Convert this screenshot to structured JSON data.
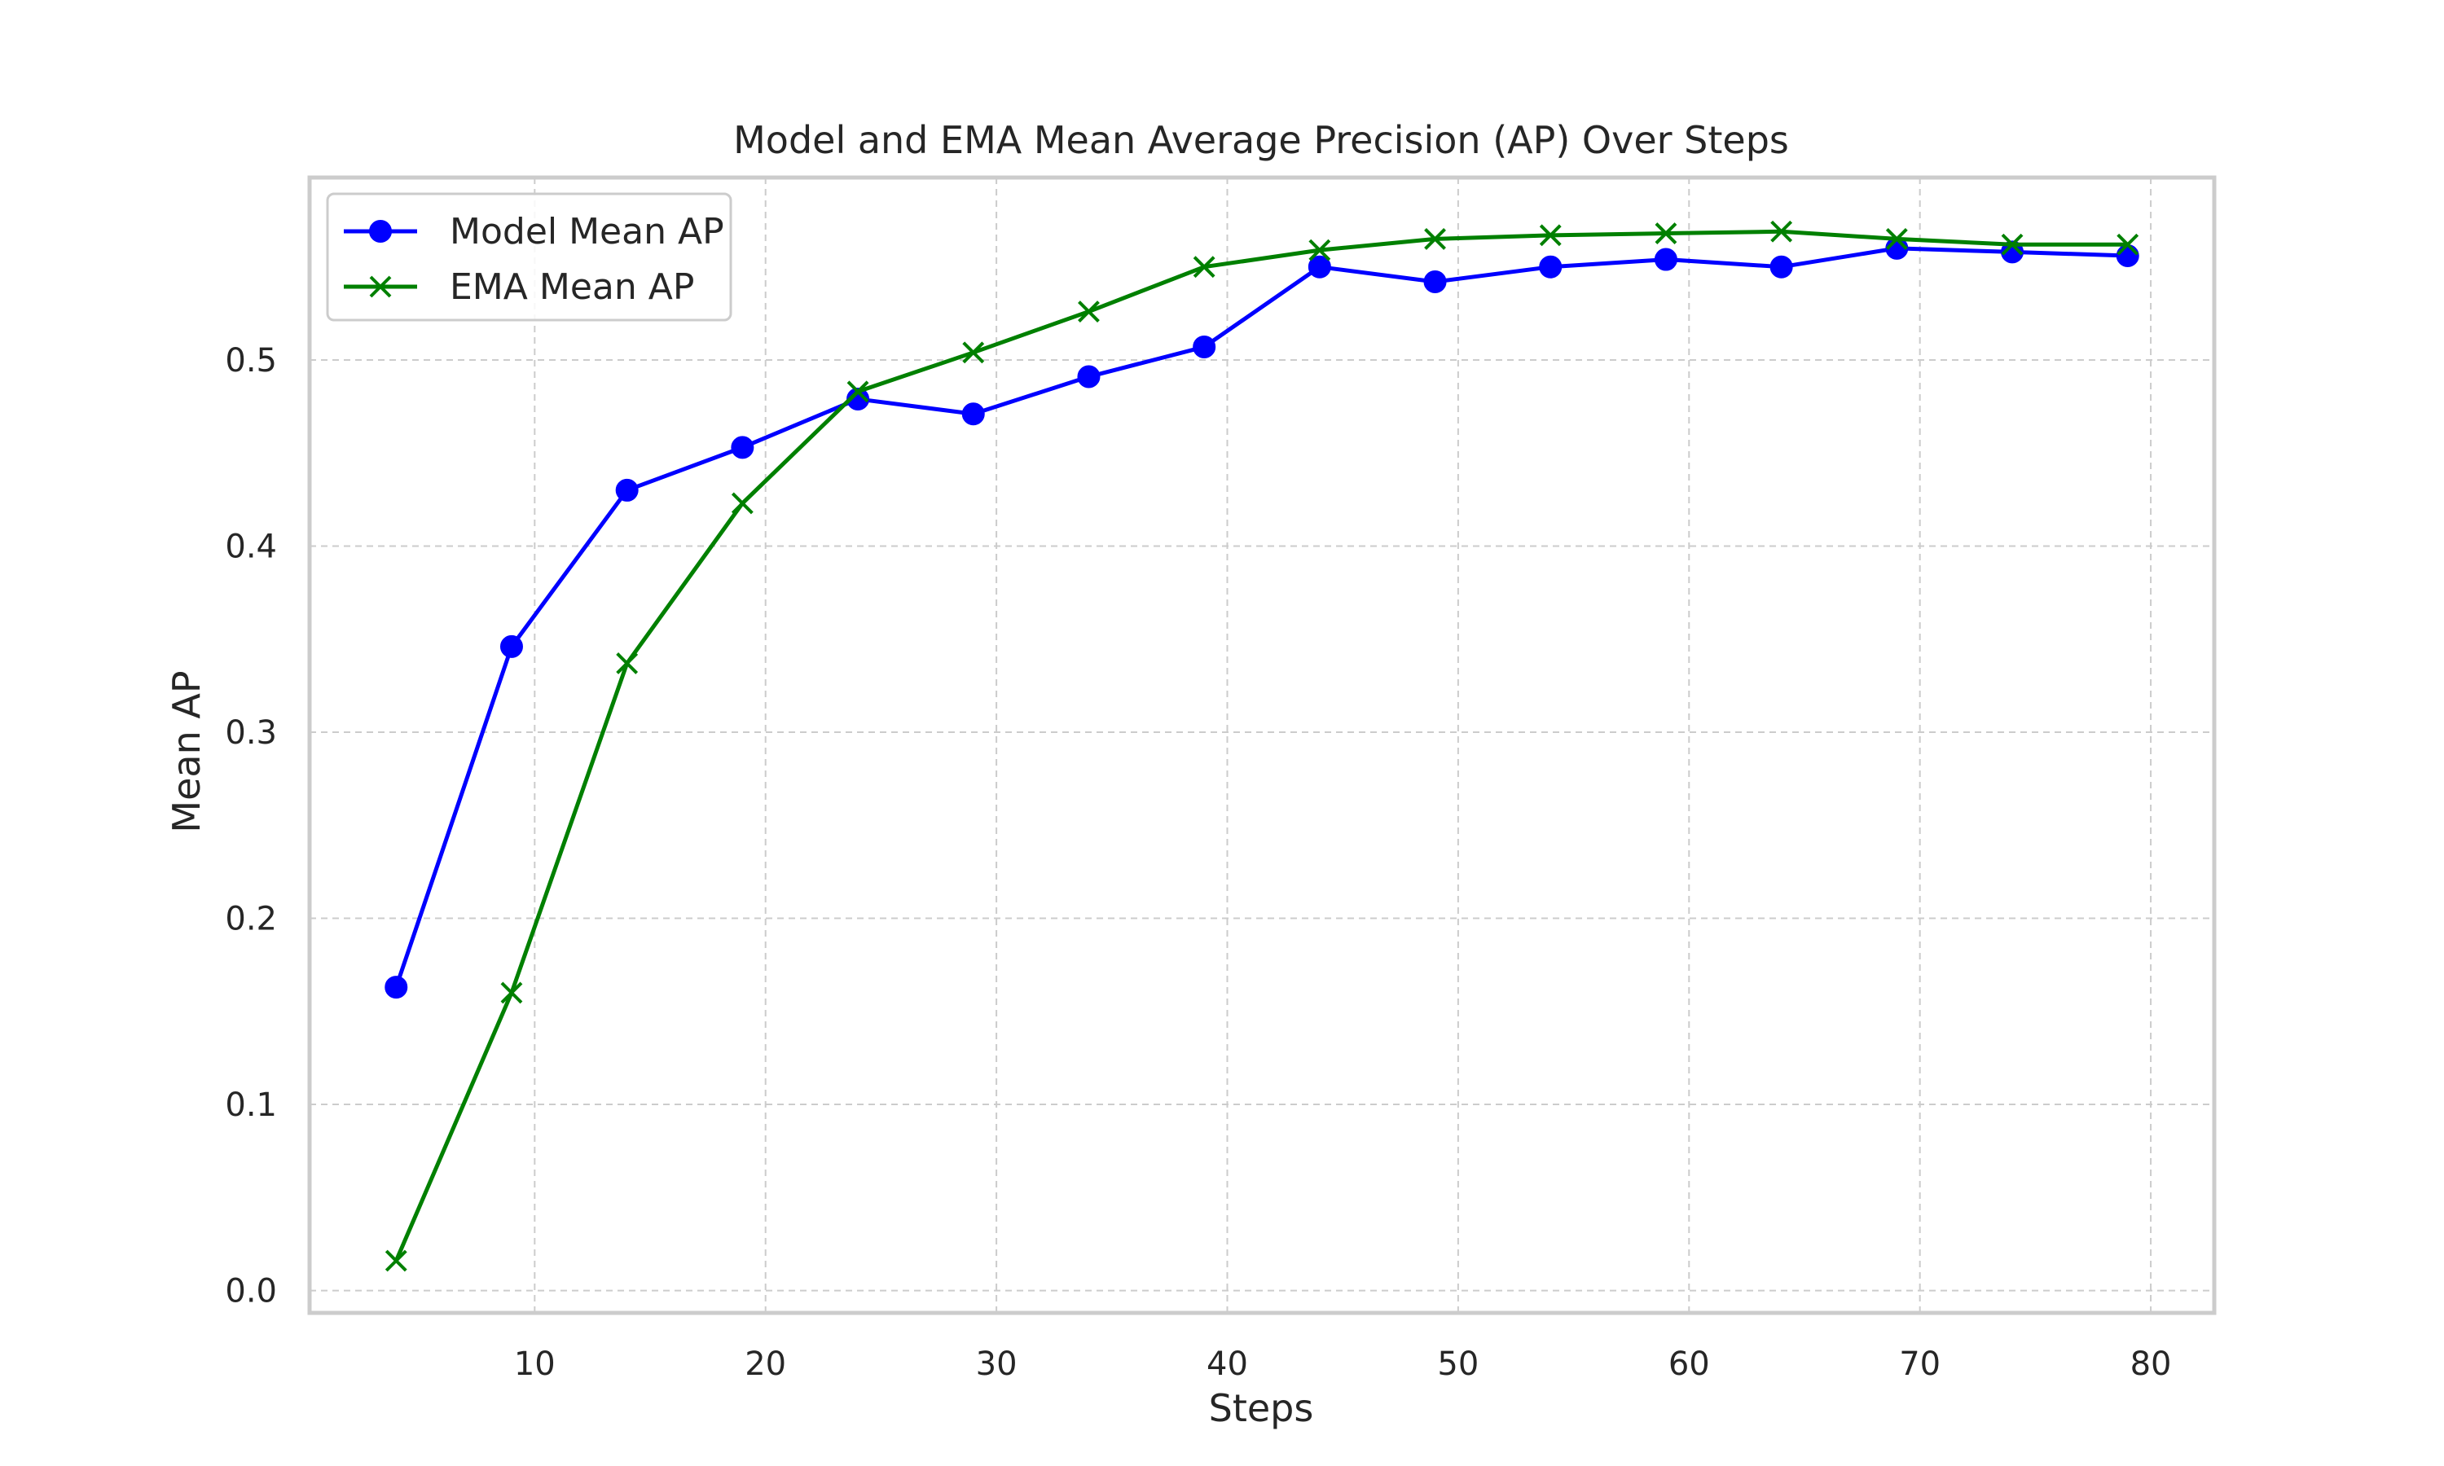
{
  "chart_data": {
    "type": "line",
    "title": "Model and EMA Mean Average Precision (AP) Over Steps",
    "xlabel": "Steps",
    "ylabel": "Mean AP",
    "x": [
      4,
      9,
      14,
      19,
      24,
      29,
      34,
      39,
      44,
      49,
      54,
      59,
      64,
      69,
      74,
      79
    ],
    "series": [
      {
        "name": "Model Mean AP",
        "color": "#0000ff",
        "marker": "circle",
        "values": [
          0.163,
          0.346,
          0.43,
          0.453,
          0.479,
          0.471,
          0.491,
          0.507,
          0.55,
          0.542,
          0.55,
          0.554,
          0.55,
          0.56,
          0.558,
          0.556
        ]
      },
      {
        "name": "EMA Mean AP",
        "color": "#008000",
        "marker": "x",
        "values": [
          0.016,
          0.16,
          0.337,
          0.423,
          0.483,
          0.504,
          0.526,
          0.55,
          0.559,
          0.565,
          0.567,
          0.568,
          0.569,
          0.565,
          0.562,
          0.562
        ]
      }
    ],
    "xlim": [
      0.25,
      82.75
    ],
    "ylim": [
      -0.012,
      0.598
    ],
    "xticks": [
      10,
      20,
      30,
      40,
      50,
      60,
      70,
      80
    ],
    "yticks": [
      0.0,
      0.1,
      0.2,
      0.3,
      0.4,
      0.5
    ],
    "xtick_labels": [
      "10",
      "20",
      "30",
      "40",
      "50",
      "60",
      "70",
      "80"
    ],
    "ytick_labels": [
      "0.0",
      "0.1",
      "0.2",
      "0.3",
      "0.4",
      "0.5"
    ],
    "grid": true,
    "legend_position": "top-left"
  }
}
